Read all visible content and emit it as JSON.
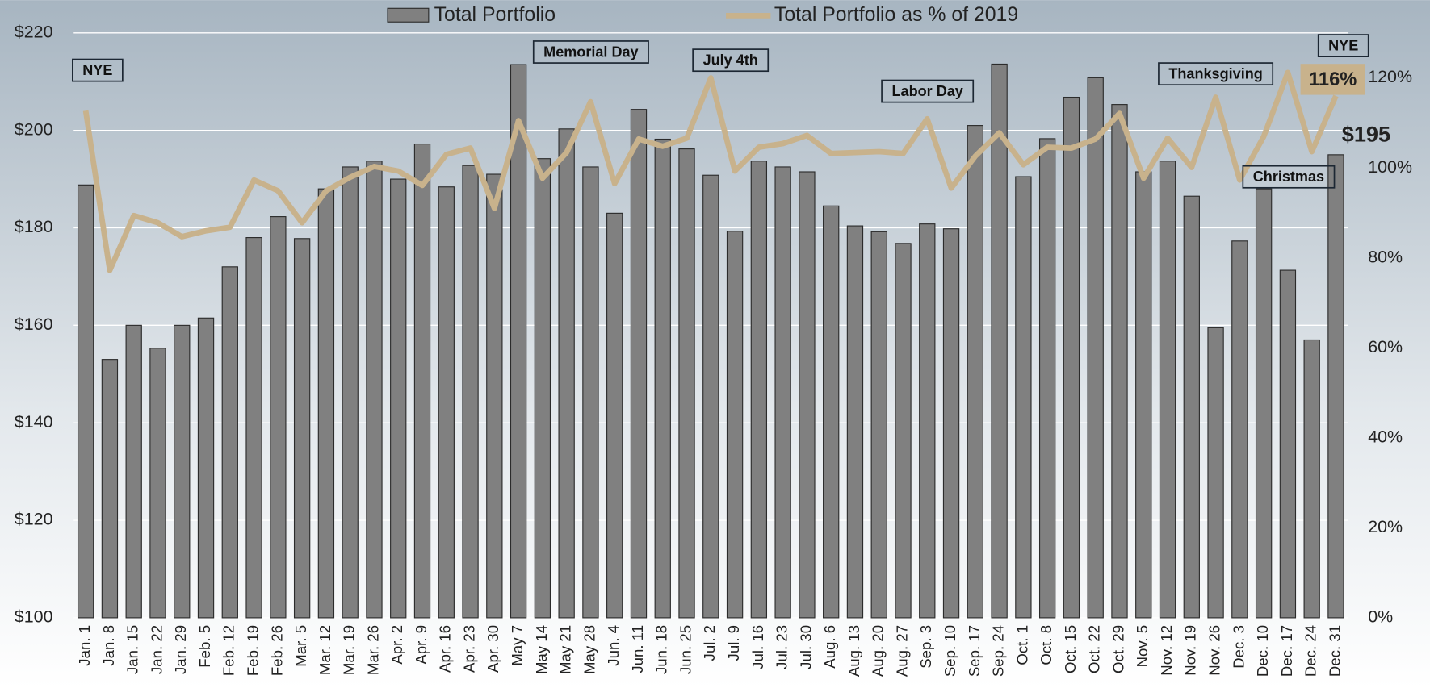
{
  "chart_data": {
    "type": "bar-line",
    "legend": "top",
    "grid": true,
    "categories": [
      "Jan. 1",
      "Jan. 8",
      "Jan. 15",
      "Jan. 22",
      "Jan. 29",
      "Feb. 5",
      "Feb. 12",
      "Feb. 19",
      "Feb. 26",
      "Mar. 5",
      "Mar. 12",
      "Mar. 19",
      "Mar. 26",
      "Apr. 2",
      "Apr. 9",
      "Apr. 16",
      "Apr. 23",
      "Apr. 30",
      "May 7",
      "May 14",
      "May 21",
      "May 28",
      "Jun. 4",
      "Jun. 11",
      "Jun. 18",
      "Jun. 25",
      "Jul. 2",
      "Jul. 9",
      "Jul. 16",
      "Jul. 23",
      "Jul. 30",
      "Aug. 6",
      "Aug. 13",
      "Aug. 20",
      "Aug. 27",
      "Sep. 3",
      "Sep. 10",
      "Sep. 17",
      "Sep. 24",
      "Oct. 1",
      "Oct. 8",
      "Oct. 15",
      "Oct. 22",
      "Oct. 29",
      "Nov. 5",
      "Nov. 12",
      "Nov. 19",
      "Nov. 26",
      "Dec. 3",
      "Dec. 10",
      "Dec. 17",
      "Dec. 24",
      "Dec. 31"
    ],
    "series": [
      {
        "name": "Total Portfolio",
        "type": "bar",
        "color": "#808080",
        "values": [
          188.8,
          153,
          160,
          155.3,
          160,
          161.5,
          172,
          178,
          182.3,
          177.8,
          188,
          192.5,
          193.7,
          190,
          197.2,
          188.4,
          192.8,
          191,
          213.5,
          194.2,
          200.3,
          192.5,
          183,
          204.3,
          198.2,
          196.2,
          190.8,
          179.3,
          193.7,
          192.5,
          191.5,
          184.5,
          180.4,
          179.2,
          176.8,
          180.8,
          179.8,
          201,
          213.6,
          190.5,
          198.3,
          206.8,
          210.8,
          205.3,
          191.5,
          193.7,
          186.5,
          159.5,
          177.3,
          188,
          171.3,
          157,
          195
        ],
        "value_labels": [
          null,
          null,
          null,
          null,
          null,
          null,
          null,
          null,
          null,
          null,
          null,
          null,
          null,
          null,
          null,
          null,
          null,
          null,
          null,
          null,
          null,
          null,
          null,
          null,
          null,
          null,
          null,
          null,
          null,
          null,
          null,
          null,
          null,
          null,
          null,
          null,
          null,
          null,
          null,
          null,
          null,
          null,
          null,
          null,
          null,
          null,
          null,
          null,
          null,
          null,
          null,
          null,
          "$195"
        ]
      },
      {
        "name": "Total Portfolio as % of 2019",
        "type": "line",
        "axis": "y2",
        "color": "#c8b28c",
        "values": [
          112.7,
          77.2,
          89.4,
          87.8,
          84.7,
          86,
          86.8,
          97.3,
          94.9,
          87.8,
          94.9,
          97.9,
          100.3,
          99.3,
          96.1,
          103,
          104.4,
          91,
          110.5,
          97.7,
          103.4,
          114.7,
          96.5,
          106.4,
          104.8,
          106.6,
          120,
          99.3,
          104.6,
          105.4,
          107.2,
          103.2,
          103.4,
          103.6,
          103.2,
          110.9,
          95.5,
          102.6,
          107.8,
          100.7,
          104.6,
          104.4,
          106.4,
          112.1,
          97.7,
          106.6,
          100.1,
          115.7,
          97.3,
          107,
          121.2,
          103.6,
          116
        ],
        "value_labels": [
          null,
          null,
          null,
          null,
          null,
          null,
          null,
          null,
          null,
          null,
          null,
          null,
          null,
          null,
          null,
          null,
          null,
          null,
          null,
          null,
          null,
          null,
          null,
          null,
          null,
          null,
          null,
          null,
          null,
          null,
          null,
          null,
          null,
          null,
          null,
          null,
          null,
          null,
          null,
          null,
          null,
          null,
          null,
          null,
          null,
          null,
          null,
          null,
          null,
          null,
          null,
          null,
          "116%"
        ]
      }
    ],
    "ylim": [
      100,
      220
    ],
    "yticks": [
      {
        "value": 100,
        "label": "$100"
      },
      {
        "value": 120,
        "label": "$120"
      },
      {
        "value": 140,
        "label": "$140"
      },
      {
        "value": 160,
        "label": "$160"
      },
      {
        "value": 180,
        "label": "$180"
      },
      {
        "value": 200,
        "label": "$200"
      },
      {
        "value": 220,
        "label": "$220"
      }
    ],
    "y2lim": [
      0,
      130
    ],
    "y2ticks": [
      {
        "value": 0,
        "label": "0%"
      },
      {
        "value": 20,
        "label": "20%"
      },
      {
        "value": 40,
        "label": "40%"
      },
      {
        "value": 60,
        "label": "60%"
      },
      {
        "value": 80,
        "label": "80%"
      },
      {
        "value": 100,
        "label": "100%"
      },
      {
        "value": 120,
        "label": "120%"
      }
    ],
    "annotations": [
      "NYE",
      "Memorial Day",
      "July 4th",
      "Labor Day",
      "Thanksgiving",
      "Christmas",
      "NYE"
    ]
  }
}
